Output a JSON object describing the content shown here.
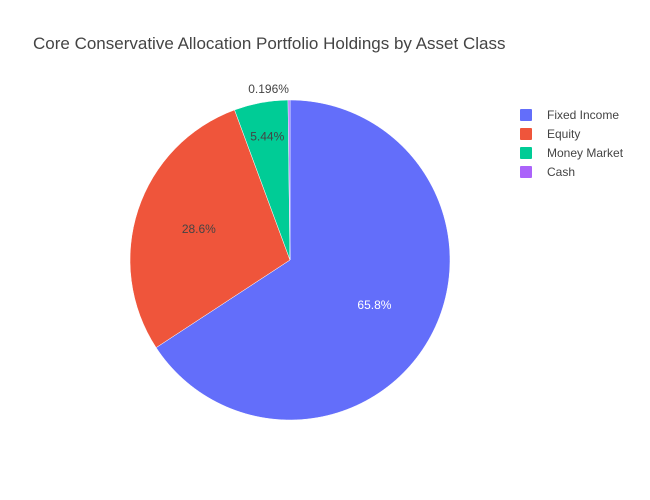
{
  "chart_data": {
    "type": "pie",
    "title": "Core Conservative Allocation Portfolio Holdings by Asset Class",
    "categories": [
      "Fixed Income",
      "Equity",
      "Money Market",
      "Cash"
    ],
    "values": [
      65.8,
      28.6,
      5.44,
      0.196
    ],
    "value_labels": [
      "65.8%",
      "28.6%",
      "5.44%",
      "0.196%"
    ],
    "colors": [
      "#636efa",
      "#ef553b",
      "#00cc96",
      "#ab63fa"
    ],
    "label_colors": [
      "#ffffff",
      "#444444",
      "#444444",
      "#444444"
    ],
    "start_angle_deg": 0,
    "direction": "clockwise",
    "legend_position": "top-right"
  }
}
